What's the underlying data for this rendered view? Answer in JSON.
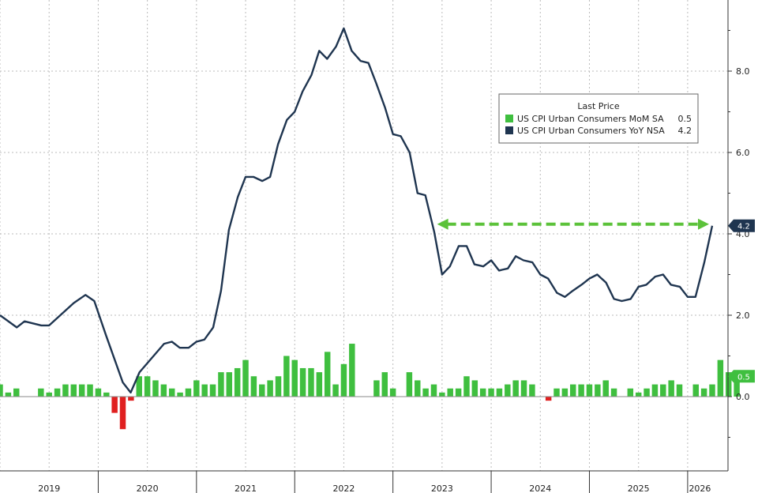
{
  "chart_data": {
    "type": "bar+line",
    "title": "",
    "xlabel": "",
    "ylabel": "",
    "ylim": [
      -1.6,
      9.6
    ],
    "y_ticks": [
      "0.0",
      "2.0",
      "4.0",
      "6.0",
      "8.0"
    ],
    "x_range": [
      2019.0,
      2026.25
    ],
    "years": [
      "2019",
      "2020",
      "2021",
      "2022",
      "2023",
      "2024",
      "2025",
      "2026"
    ],
    "grid": true,
    "legend": {
      "title": "Last Price",
      "placement": "top-right",
      "items": [
        {
          "label": "US CPI Urban Consumers MoM SA",
          "value": "0.5",
          "color": "#3fbf3f"
        },
        {
          "label": "US CPI Urban Consumers YoY NSA",
          "value": "4.2",
          "color": "#1f3550"
        }
      ]
    },
    "series": [
      {
        "name": "US CPI Urban Consumers MoM SA",
        "kind": "bar",
        "color": "#3fbf3f",
        "negative_color": "#e02020",
        "start": 2019.0,
        "step_months": 1,
        "values": [
          0.3,
          0.1,
          0.2,
          0.0,
          0.0,
          0.2,
          0.1,
          0.2,
          0.3,
          0.3,
          0.3,
          0.3,
          0.2,
          0.1,
          -0.4,
          -0.8,
          -0.1,
          0.5,
          0.5,
          0.4,
          0.3,
          0.2,
          0.1,
          0.2,
          0.4,
          0.3,
          0.3,
          0.6,
          0.6,
          0.7,
          0.9,
          0.5,
          0.3,
          0.4,
          0.5,
          1.0,
          0.9,
          0.7,
          0.7,
          0.6,
          1.1,
          0.3,
          0.8,
          1.3,
          0.0,
          0.0,
          0.4,
          0.6,
          0.2,
          0.0,
          0.6,
          0.4,
          0.2,
          0.3,
          0.1,
          0.2,
          0.2,
          0.5,
          0.4,
          0.2,
          0.2,
          0.2,
          0.3,
          0.4,
          0.4,
          0.3,
          0.0,
          -0.1,
          0.2,
          0.2,
          0.3,
          0.3,
          0.3,
          0.3,
          0.4,
          0.2,
          0.0,
          0.2,
          0.1,
          0.2,
          0.3,
          0.3,
          0.4,
          0.3,
          0.0,
          0.3,
          0.2,
          0.3,
          0.9,
          0.6,
          0.5
        ],
        "last_price": "0.5"
      },
      {
        "name": "US CPI Urban Consumers YoY NSA",
        "kind": "line",
        "color": "#1f3550",
        "points": [
          [
            2019.0,
            2.0
          ],
          [
            2019.17,
            1.7
          ],
          [
            2019.25,
            1.85
          ],
          [
            2019.42,
            1.75
          ],
          [
            2019.5,
            1.75
          ],
          [
            2019.75,
            2.3
          ],
          [
            2019.87,
            2.5
          ],
          [
            2019.96,
            2.35
          ],
          [
            2020.08,
            1.5
          ],
          [
            2020.25,
            0.35
          ],
          [
            2020.33,
            0.1
          ],
          [
            2020.42,
            0.6
          ],
          [
            2020.67,
            1.3
          ],
          [
            2020.75,
            1.35
          ],
          [
            2020.83,
            1.2
          ],
          [
            2020.92,
            1.2
          ],
          [
            2021.0,
            1.35
          ],
          [
            2021.08,
            1.4
          ],
          [
            2021.17,
            1.7
          ],
          [
            2021.25,
            2.6
          ],
          [
            2021.33,
            4.1
          ],
          [
            2021.42,
            4.9
          ],
          [
            2021.5,
            5.4
          ],
          [
            2021.58,
            5.4
          ],
          [
            2021.67,
            5.3
          ],
          [
            2021.75,
            5.4
          ],
          [
            2021.83,
            6.2
          ],
          [
            2021.92,
            6.8
          ],
          [
            2022.0,
            7.0
          ],
          [
            2022.08,
            7.5
          ],
          [
            2022.17,
            7.9
          ],
          [
            2022.25,
            8.5
          ],
          [
            2022.33,
            8.3
          ],
          [
            2022.42,
            8.6
          ],
          [
            2022.5,
            9.05
          ],
          [
            2022.58,
            8.5
          ],
          [
            2022.67,
            8.25
          ],
          [
            2022.75,
            8.2
          ],
          [
            2022.83,
            7.7
          ],
          [
            2022.92,
            7.1
          ],
          [
            2023.0,
            6.45
          ],
          [
            2023.08,
            6.4
          ],
          [
            2023.17,
            6.0
          ],
          [
            2023.25,
            5.0
          ],
          [
            2023.33,
            4.95
          ],
          [
            2023.42,
            4.05
          ],
          [
            2023.5,
            3.0
          ],
          [
            2023.58,
            3.2
          ],
          [
            2023.67,
            3.7
          ],
          [
            2023.75,
            3.7
          ],
          [
            2023.83,
            3.25
          ],
          [
            2023.92,
            3.2
          ],
          [
            2024.0,
            3.35
          ],
          [
            2024.08,
            3.1
          ],
          [
            2024.17,
            3.15
          ],
          [
            2024.25,
            3.45
          ],
          [
            2024.33,
            3.35
          ],
          [
            2024.42,
            3.3
          ],
          [
            2024.5,
            3.0
          ],
          [
            2024.58,
            2.9
          ],
          [
            2024.67,
            2.55
          ],
          [
            2024.75,
            2.45
          ],
          [
            2024.83,
            2.6
          ],
          [
            2024.92,
            2.75
          ],
          [
            2025.0,
            2.9
          ],
          [
            2025.08,
            3.0
          ],
          [
            2025.17,
            2.8
          ],
          [
            2025.25,
            2.4
          ],
          [
            2025.33,
            2.35
          ],
          [
            2025.42,
            2.4
          ],
          [
            2025.5,
            2.7
          ],
          [
            2025.58,
            2.75
          ],
          [
            2025.67,
            2.95
          ],
          [
            2025.75,
            3.0
          ],
          [
            2025.83,
            2.75
          ],
          [
            2025.92,
            2.7
          ],
          [
            2026.0,
            2.45
          ],
          [
            2026.08,
            2.45
          ],
          [
            2026.17,
            3.3
          ],
          [
            2026.25,
            4.2
          ]
        ],
        "last_price": "4.2"
      }
    ],
    "annotation": {
      "kind": "dashed-double-arrow",
      "color": "#5cc23a",
      "x_from": 2023.45,
      "x_to": 2026.25,
      "y": 4.2
    }
  }
}
